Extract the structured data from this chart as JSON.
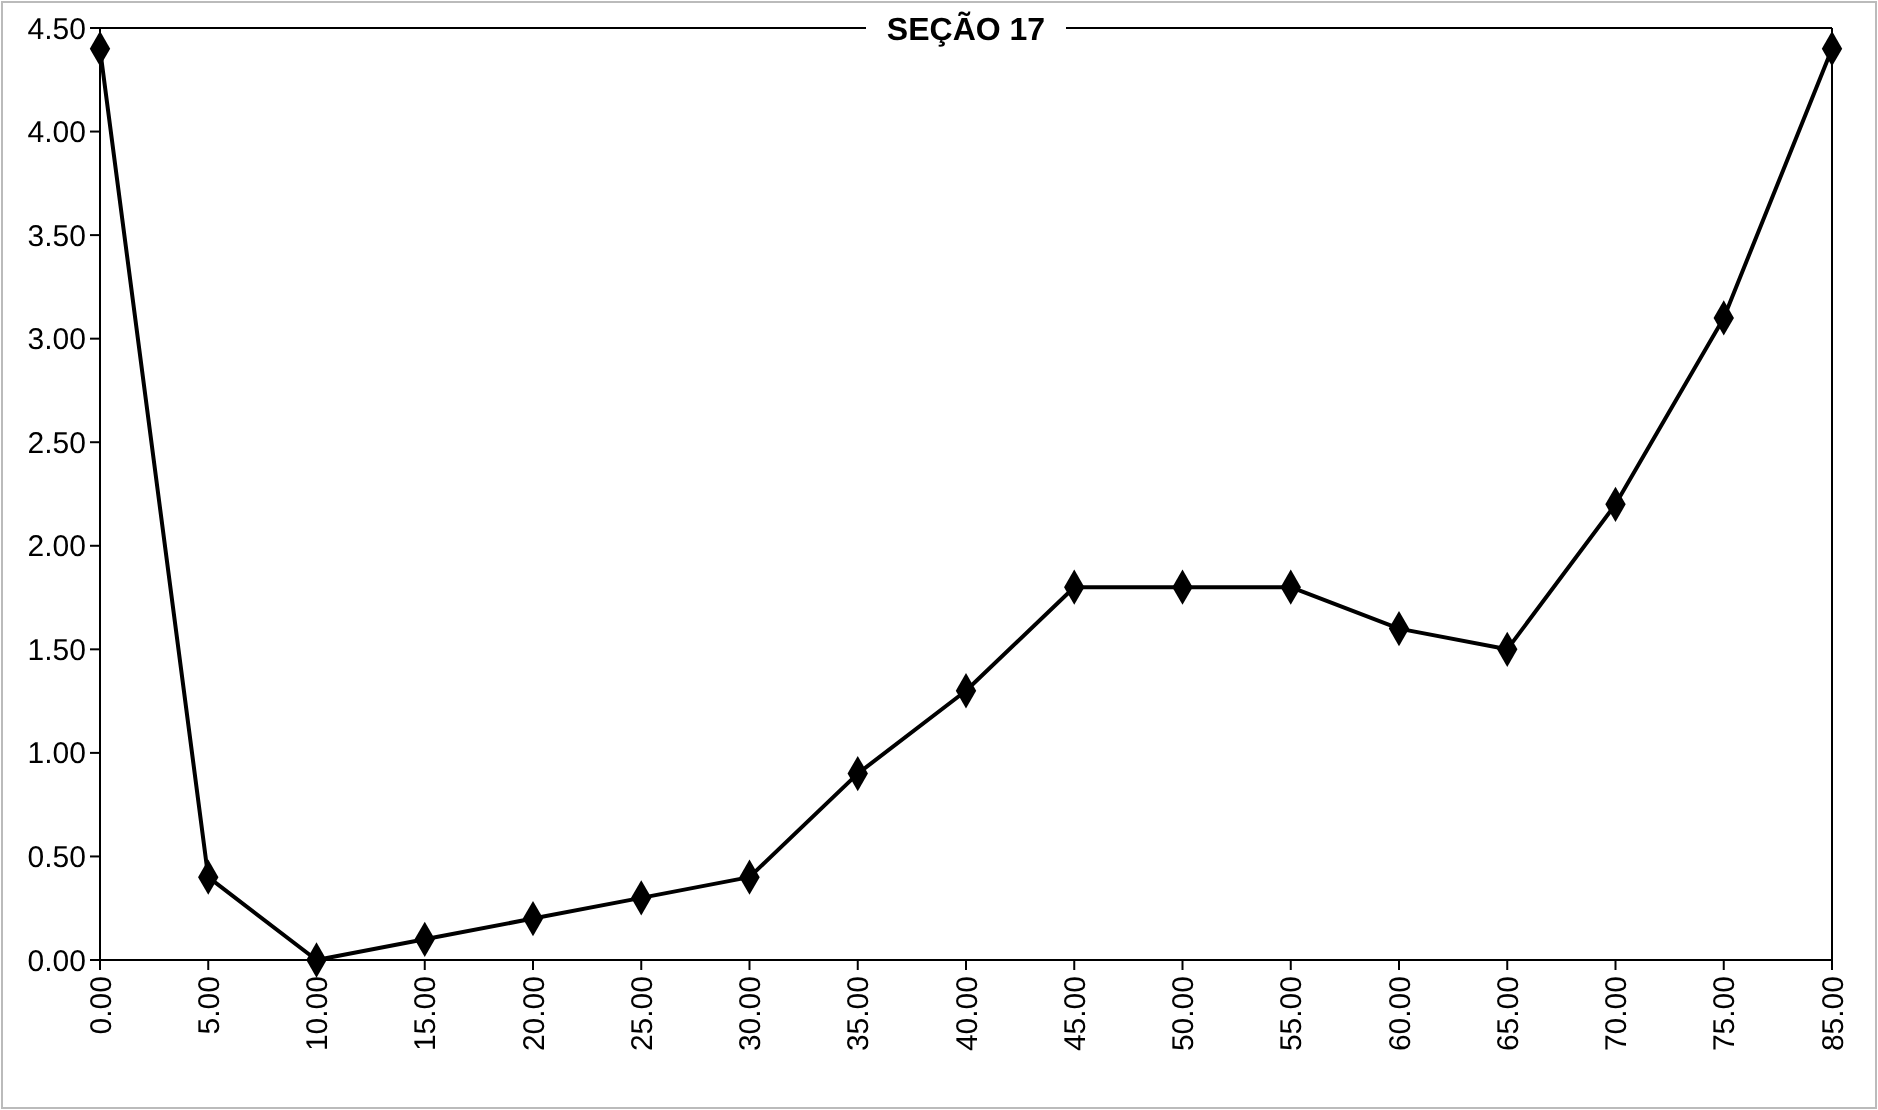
{
  "chart_data": {
    "type": "line",
    "title": "SEÇÃO 17",
    "categories": [
      "0.00",
      "5.00",
      "10.00",
      "15.00",
      "20.00",
      "25.00",
      "30.00",
      "35.00",
      "40.00",
      "45.00",
      "50.00",
      "55.00",
      "60.00",
      "65.00",
      "70.00",
      "75.00",
      "85.00"
    ],
    "series": [
      {
        "color": "#000000",
        "values": [
          4.4,
          0.4,
          0,
          0.1,
          0.2,
          0.3,
          0.4,
          0.9,
          1.3,
          1.8,
          1.8,
          1.8,
          1.6,
          1.5,
          2.2,
          3.1,
          4.4
        ]
      }
    ],
    "ylim": [
      0,
      4.5
    ],
    "yticks": [
      {
        "value": 0,
        "label": "0.00"
      },
      {
        "value": 0.5,
        "label": "0.50"
      },
      {
        "value": 1,
        "label": "1.00"
      },
      {
        "value": 1.5,
        "label": "1.50"
      },
      {
        "value": 2,
        "label": "2.00"
      },
      {
        "value": 2.5,
        "label": "2.50"
      },
      {
        "value": 3,
        "label": "3.00"
      },
      {
        "value": 3.5,
        "label": "3.50"
      },
      {
        "value": 4,
        "label": "4.00"
      },
      {
        "value": 4.5,
        "label": "4.50"
      }
    ],
    "marker": "diamond",
    "line_style": "solid"
  }
}
